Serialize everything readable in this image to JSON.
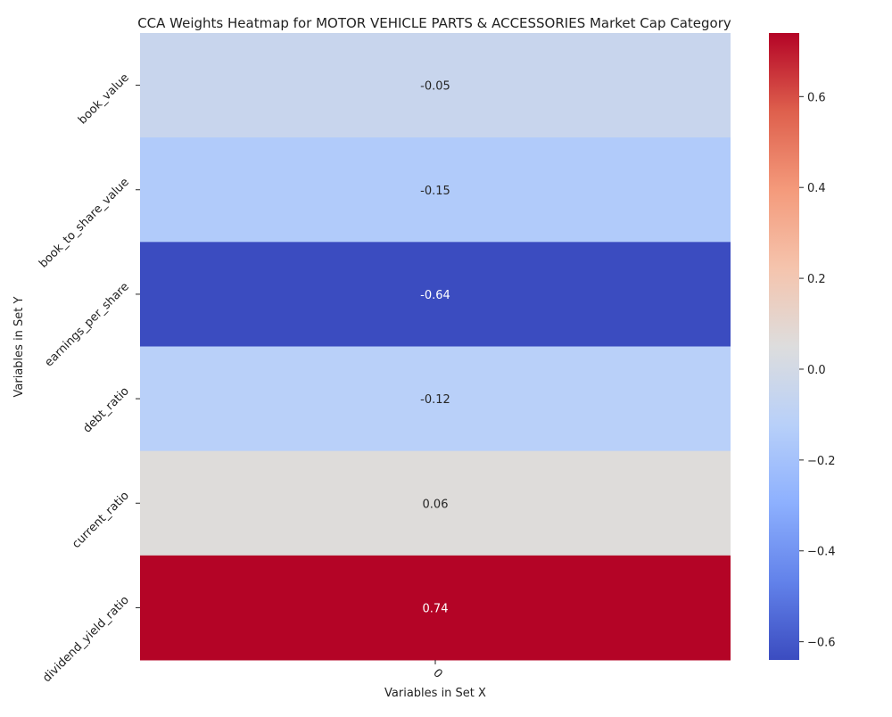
{
  "chart_data": {
    "type": "heatmap",
    "title": "CCA Weights Heatmap for MOTOR VEHICLE PARTS & ACCESSORIES Market Cap Category",
    "xlabel": "Variables in Set X",
    "ylabel": "Variables in Set Y",
    "x_categories": [
      "0"
    ],
    "y_categories": [
      "book_value",
      "book_to_share_value",
      "earnings_per_share",
      "debt_ratio",
      "current_ratio",
      "dividend_yield_ratio"
    ],
    "values": [
      [
        -0.05
      ],
      [
        -0.15
      ],
      [
        -0.64
      ],
      [
        -0.12
      ],
      [
        0.06
      ],
      [
        0.74
      ]
    ],
    "value_labels": [
      "-0.05",
      "-0.15",
      "-0.64",
      "-0.12",
      "0.06",
      "0.74"
    ],
    "colormap": "coolwarm",
    "colorbar": {
      "vmin": -0.64,
      "vmax": 0.74,
      "ticks": [
        -0.6,
        -0.4,
        -0.2,
        0.0,
        0.2,
        0.4,
        0.6
      ],
      "tick_labels": [
        "−0.6",
        "−0.4",
        "−0.2",
        "0.0",
        "0.2",
        "0.4",
        "0.6"
      ]
    }
  }
}
